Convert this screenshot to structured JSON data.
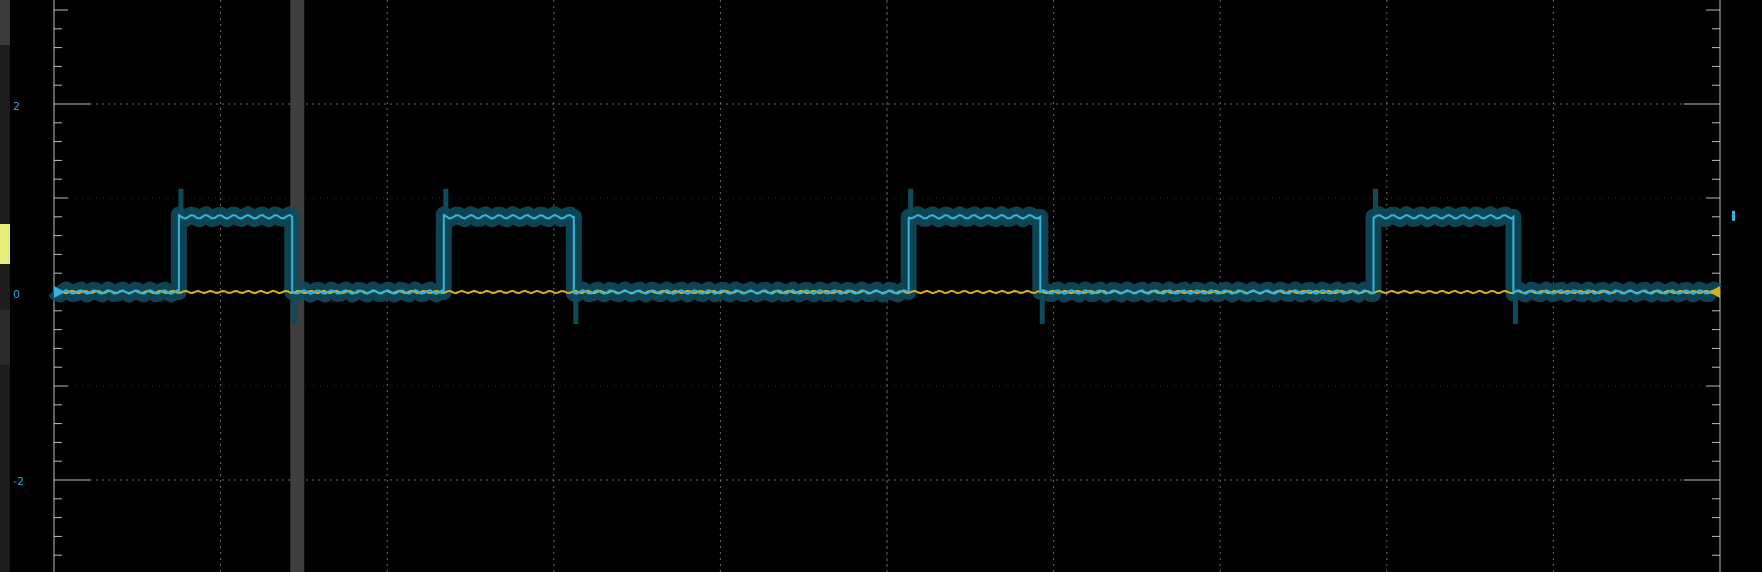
{
  "colors": {
    "background": "#000000",
    "grid": "#6a6a6a",
    "frame": "#bdbdbd",
    "ch_blue": "#33b5e0",
    "ch_blue_band": "#0e4a5c",
    "ch_yellow": "#d6b01a",
    "cursor": "#4a4a4a",
    "strip_yellow": "#e6ec7a",
    "label": "#2fa3d8"
  },
  "left_axis": {
    "tick_labels": [
      "2",
      "0",
      "-2"
    ]
  },
  "chart_data": {
    "type": "line",
    "ylim": [
      -3.0,
      3.05
    ],
    "xlim": [
      0,
      10
    ],
    "y_ticks": [
      2,
      0,
      -2
    ],
    "grid": true,
    "series": [
      {
        "color_key": "ch_blue",
        "high": 0.8,
        "low": 0.0,
        "pulses": [
          [
            0.75,
            1.43
          ],
          [
            2.34,
            3.12
          ],
          [
            5.13,
            5.92
          ],
          [
            7.92,
            8.76
          ]
        ]
      },
      {
        "color_key": "ch_yellow",
        "level": 0.0
      }
    ],
    "cursor_x": 1.46
  }
}
